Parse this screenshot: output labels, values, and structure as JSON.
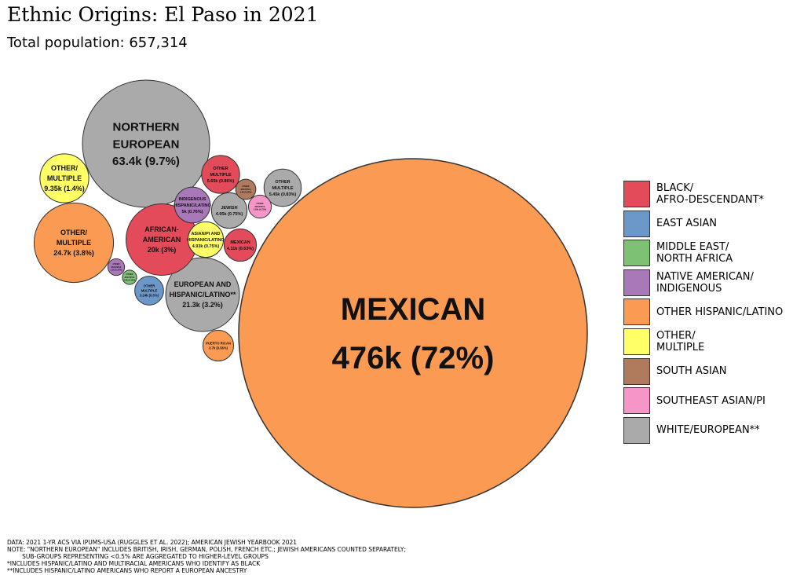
{
  "title": "Ethnic Origins: El Paso in 2021",
  "subtitle": "Total population: 657,314",
  "chart_data": {
    "type": "bubble",
    "total": 657314,
    "bubbles": [
      {
        "label": "MEXICAN",
        "value": "476k (72%)",
        "n": 476000,
        "group": "OTHER HISPANIC/LATINO"
      },
      {
        "label": "NORTHERN\nEUROPEAN",
        "value": "63.4k (9.7%)",
        "n": 63400,
        "group": "WHITE/EUROPEAN**"
      },
      {
        "label": "OTHER/\nMULTIPLE",
        "value": "24.7k (3.8%)",
        "n": 24700,
        "group": "OTHER HISPANIC/LATINO"
      },
      {
        "label": "EUROPEAN AND\nHISPANIC/LATINO**",
        "value": "21.3k (3.2%)",
        "n": 21300,
        "group": "WHITE/EUROPEAN**"
      },
      {
        "label": "AFRICAN-\nAMERICAN",
        "value": "20k (3%)",
        "n": 20000,
        "group": "BLACK/AFRO-DESCENDANT*"
      },
      {
        "label": "OTHER/\nMULTIPLE",
        "value": "9.35k (1.4%)",
        "n": 9350,
        "group": "OTHER/MULTIPLE"
      },
      {
        "label": "OTHER\nMULTIPLE",
        "value": "5.65k (0.86%)",
        "n": 5650,
        "group": "BLACK/AFRO-DESCENDANT*"
      },
      {
        "label": "INDIGENOUS\nHISPANIC/LATINO",
        "value": "5k (0.76%)",
        "n": 5000,
        "group": "NATIVE AMERICAN/INDIGENOUS"
      },
      {
        "label": "JEWISH",
        "value": "4.95k (0.75%)",
        "n": 4950,
        "group": "WHITE/EUROPEAN**"
      },
      {
        "label": "ASIAN/PI AND\nHISPANIC/LATINO",
        "value": "4.93k (0.75%)",
        "n": 4930,
        "group": "OTHER/MULTIPLE"
      },
      {
        "label": "OTHER\nMULTIPLE",
        "value": "5.45k (0.83%)",
        "n": 5450,
        "group": "WHITE/EUROPEAN**"
      },
      {
        "label": "MEXICAN",
        "value": "4.11k (0.63%)",
        "n": 4110,
        "group": "BLACK/AFRO-DESCENDANT*"
      },
      {
        "label": "PUERTO RICAN",
        "value": "3.7k (0.56%)",
        "n": 3700,
        "group": "OTHER HISPANIC/LATINO"
      },
      {
        "label": "OTHER\nMULTIPLE",
        "value": "3.24k (0.5%)",
        "n": 3240,
        "group": "EAST ASIAN"
      },
      {
        "label": "OTHER\nMULTIPLE",
        "value": "2.05k (0.31%)",
        "n": 2050,
        "group": "SOUTHEAST ASIAN/PI"
      },
      {
        "label": "OTHER\nMULTIPLE",
        "value": "1.6k (0.24%)",
        "n": 1600,
        "group": "SOUTH ASIAN"
      },
      {
        "label": "OTHER\nMULTIPLE",
        "value": "1.1k (0.17%)",
        "n": 1100,
        "group": "NATIVE AMERICAN/INDIGENOUS"
      },
      {
        "label": "OTHER\nMULTIPLE",
        "value": "0.8k (0.12%)",
        "n": 800,
        "group": "MIDDLE EAST/NORTH AFRICA"
      }
    ],
    "legend": [
      {
        "label": "BLACK/\nAFRO-DESCENDANT*",
        "color": "#e34a5a"
      },
      {
        "label": "EAST ASIAN",
        "color": "#6b97c9"
      },
      {
        "label": "MIDDLE EAST/\nNORTH AFRICA",
        "color": "#7dc174"
      },
      {
        "label": "NATIVE AMERICAN/\nINDIGENOUS",
        "color": "#a878b8"
      },
      {
        "label": "OTHER HISPANIC/LATINO",
        "color": "#fb9a52"
      },
      {
        "label": "OTHER/\nMULTIPLE",
        "color": "#ffff66"
      },
      {
        "label": "SOUTH ASIAN",
        "color": "#b07a5f"
      },
      {
        "label": "SOUTHEAST ASIAN/PI",
        "color": "#f595c8"
      },
      {
        "label": "WHITE/EUROPEAN**",
        "color": "#aaaaaa"
      }
    ]
  },
  "footnotes": [
    "DATA: 2021 1-YR ACS VIA IPUMS-USA (RUGGLES ET AL. 2022); AMERICAN JEWISH YEARBOOK 2021",
    "NOTE: \"NORTHERN EUROPEAN\" INCLUDES BRITISH, IRISH, GERMAN, POLISH, FRENCH ETC.; JEWISH AMERICANS COUNTED SEPARATELY;",
    "        SUB-GROUPS REPRESENTING <0.5% ARE AGGREGATED TO HIGHER-LEVEL GROUPS",
    "*INCLUDES HISPANIC/LATINO AND MULTIRACIAL AMERICANS WHO IDENTIFY AS BLACK",
    "**INCLUDES HISPANIC/LATINO AMERICANS WHO REPORT A EUROPEAN ANCESTRY"
  ]
}
